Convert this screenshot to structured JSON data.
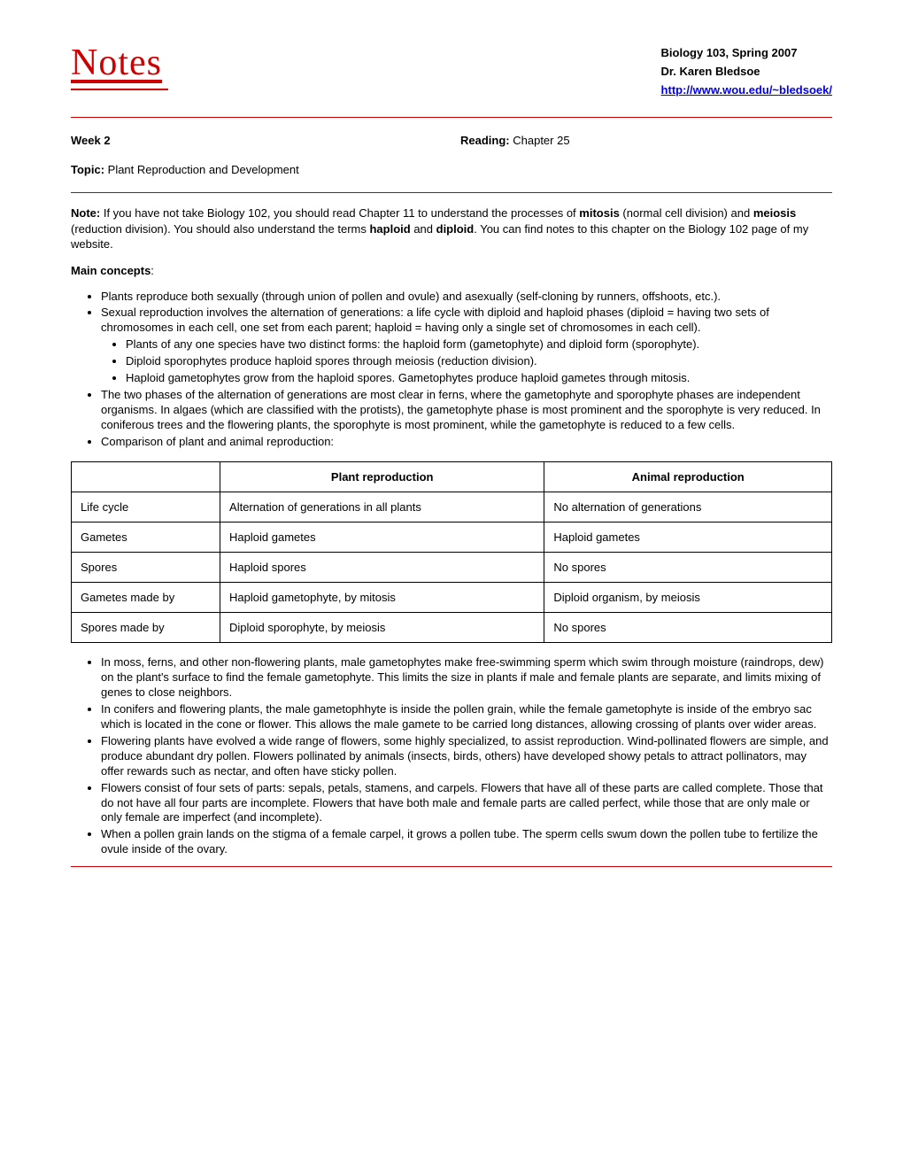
{
  "logo_text": "Notes",
  "header": {
    "course": "Biology 103, Spring 2007",
    "instructor": "Dr. Karen Bledsoe",
    "url": "http://www.wou.edu/~bledsoek/"
  },
  "week_label": "Week 2",
  "reading_label": "Reading:",
  "reading_value": " Chapter 25",
  "topic_label": "Topic:",
  "topic_value": " Plant Reproduction and Development",
  "note_label": "Note:",
  "note_text": " If you have not take Biology 102, you should read Chapter 11 to understand the processes of ",
  "note_bold1": "mitosis",
  "note_text2": " (normal cell division) and ",
  "note_bold2": "meiosis",
  "note_text3": " (reduction division). You should also understand the terms ",
  "note_bold3": "haploid",
  "note_text4": " and ",
  "note_bold4": "diploid",
  "note_text5": ". You can find notes to this chapter on the Biology 102 page of my website.",
  "main_concepts_label": "Main concepts",
  "bullets_top": [
    "Plants reproduce both sexually (through union of pollen and ovule) and asexually (self-cloning by runners, offshoots, etc.).",
    "Sexual reproduction involves the alternation of generations: a life cycle with diploid and haploid phases (diploid = having two sets of chromosomes in each cell, one set from each parent; haploid = having only a single set of chromosomes in each cell)."
  ],
  "bullets_sub": [
    "Plants of any one species have two distinct forms: the haploid form (gametophyte) and diploid form (sporophyte).",
    "Diploid sporophytes produce haploid spores through meiosis (reduction division).",
    "Haploid gametophytes grow from the haploid spores. Gametophytes produce haploid gametes through mitosis."
  ],
  "bullets_mid": [
    "The two phases of the alternation of generations are most clear in ferns, where the gametophyte and sporophyte phases are independent organisms. In algaes (which are classified with the protists), the gametophyte phase is most prominent and the sporophyte is very reduced. In coniferous trees and the flowering plants, the sporophyte is most prominent, while the gametophyte is reduced to a few cells.",
    "Comparison of plant and animal reproduction:"
  ],
  "table": {
    "headers": [
      "",
      "Plant reproduction",
      "Animal reproduction"
    ],
    "rows": [
      [
        "Life cycle",
        "Alternation of generations in all plants",
        "No alternation of generations"
      ],
      [
        "Gametes",
        "Haploid gametes",
        "Haploid gametes"
      ],
      [
        "Spores",
        "Haploid spores",
        "No spores"
      ],
      [
        "Gametes made by",
        "Haploid gametophyte, by mitosis",
        "Diploid organism, by meiosis"
      ],
      [
        "Spores made by",
        "Diploid sporophyte, by meiosis",
        "No spores"
      ]
    ]
  },
  "bullets_bottom": [
    "In moss, ferns, and other non-flowering plants, male gametophytes make free-swimming sperm which swim through moisture (raindrops, dew) on the plant's surface to find the female gametophyte. This limits the size in plants if male and female plants are separate, and limits mixing of genes to close neighbors.",
    "In conifers and flowering plants, the male gametophhyte is inside the pollen grain, while the female gametophyte is inside of the embryo sac which is located in the cone or flower. This allows the male gamete to be carried long distances, allowing crossing of plants over wider areas.",
    "Flowering plants have evolved a wide range of flowers, some highly specialized, to assist reproduction. Wind-pollinated flowers are simple, and produce abundant dry pollen. Flowers pollinated by animals (insects, birds, others) have developed showy petals to attract pollinators, may offer rewards such as nectar, and often have sticky pollen.",
    "Flowers consist of four sets of parts: sepals, petals, stamens, and carpels. Flowers that have all of these parts are called complete. Those that do not have all four parts are incomplete. Flowers that have both male and female parts are called perfect, while those that are only male or only female are imperfect (and incomplete).",
    "When a pollen grain lands on the stigma of a female carpel, it grows a pollen tube. The sperm cells swum down the pollen tube to fertilize the ovule inside of the ovary."
  ]
}
